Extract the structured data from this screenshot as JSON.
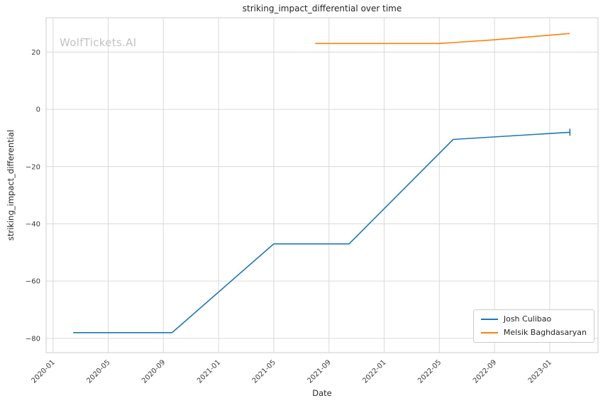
{
  "chart_data": {
    "type": "line",
    "title": "striking_impact_differential over time",
    "xlabel": "Date",
    "ylabel": "striking_impact_differential",
    "watermark": "WolfTickets.AI",
    "grid": true,
    "legend_position": "lower right",
    "x_ticks": [
      "2020-01",
      "2020-05",
      "2020-09",
      "2021-01",
      "2021-05",
      "2021-09",
      "2022-01",
      "2022-05",
      "2022-09",
      "2023-01"
    ],
    "y_ticks": [
      -80,
      -60,
      -40,
      -20,
      0,
      20
    ],
    "ylim": [
      -85,
      32
    ],
    "xlim_months_from_2020_01": [
      -0.5,
      39.5
    ],
    "series": [
      {
        "name": "Josh Culibao",
        "color": "#1f77b4",
        "points": [
          {
            "date": "2020-02-15",
            "value": -78
          },
          {
            "date": "2020-09-20",
            "value": -78
          },
          {
            "date": "2021-05-01",
            "value": -47
          },
          {
            "date": "2021-10-15",
            "value": -47
          },
          {
            "date": "2022-06-01",
            "value": -10.5
          },
          {
            "date": "2023-02-15",
            "value": -8
          }
        ],
        "end_tick_marker": true
      },
      {
        "name": "Melsik Baghdasaryan",
        "color": "#ff7f0e",
        "points": [
          {
            "date": "2021-08-01",
            "value": 23
          },
          {
            "date": "2022-05-01",
            "value": 23
          },
          {
            "date": "2022-09-01",
            "value": 24.3
          },
          {
            "date": "2023-02-15",
            "value": 26.5
          }
        ],
        "end_tick_marker": false
      }
    ],
    "colors": {
      "grid": "#d9d9d9",
      "spine": "#cccccc",
      "tick_text": "#3a3a3a",
      "text": "#262626",
      "watermark": "#c2c2c2"
    }
  }
}
